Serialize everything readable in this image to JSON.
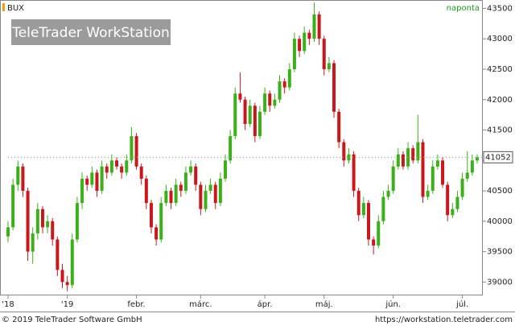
{
  "chart_data": {
    "type": "candlestick",
    "title": "BUX",
    "interval": "naponta",
    "watermark": "TeleTrader WorkStation",
    "footer_left": "© 2019 TeleTrader Software GmbH",
    "footer_right": "https://workstation.teletrader.com",
    "last_value": 41052,
    "up_color": "#3cb01a",
    "down_color": "#c8181e",
    "ylim": [
      38780,
      43625
    ],
    "yticks": [
      {
        "value": 39000,
        "label": "39000"
      },
      39500,
      40000,
      40500,
      41000,
      41500,
      42000,
      42500,
      43000,
      43500
    ],
    "categories": [
      "'18",
      null,
      null,
      null,
      null,
      null,
      null,
      null,
      null,
      null,
      null,
      null,
      "'19",
      null,
      null,
      null,
      null,
      null,
      null,
      null,
      null,
      null,
      null,
      null,
      null,
      null,
      "febr.",
      null,
      null,
      null,
      null,
      null,
      null,
      null,
      null,
      null,
      null,
      null,
      null,
      "márc.",
      null,
      null,
      null,
      null,
      null,
      null,
      null,
      null,
      null,
      null,
      null,
      null,
      "ápr.",
      null,
      null,
      null,
      null,
      null,
      null,
      null,
      null,
      null,
      null,
      null,
      "máj.",
      null,
      null,
      null,
      null,
      null,
      null,
      null,
      null,
      null,
      null,
      null,
      null,
      null,
      "jún.",
      null,
      null,
      null,
      null,
      null,
      null,
      null,
      null,
      null,
      null,
      null,
      null,
      null,
      "júl.",
      null,
      null,
      null
    ],
    "candles": [
      [
        39750,
        40000,
        39650,
        39900
      ],
      [
        39900,
        40700,
        39850,
        40600
      ],
      [
        40600,
        41000,
        40500,
        40900
      ],
      [
        40900,
        40950,
        40400,
        40500
      ],
      [
        40500,
        40550,
        39350,
        39500
      ],
      [
        39500,
        39900,
        39300,
        39800
      ],
      [
        39800,
        40300,
        39700,
        40200
      ],
      [
        40200,
        40250,
        39800,
        39900
      ],
      [
        39900,
        40100,
        39800,
        40000
      ],
      [
        40000,
        40050,
        39600,
        39700
      ],
      [
        39700,
        39750,
        39100,
        39200
      ],
      [
        39200,
        39300,
        38900,
        39000
      ],
      [
        39000,
        39100,
        38850,
        38950
      ],
      [
        38950,
        39800,
        38900,
        39700
      ],
      [
        39700,
        40400,
        39650,
        40300
      ],
      [
        40300,
        40800,
        40200,
        40700
      ],
      [
        40700,
        40750,
        40500,
        40600
      ],
      [
        40600,
        40900,
        40550,
        40800
      ],
      [
        40800,
        40850,
        40400,
        40500
      ],
      [
        40500,
        41000,
        40450,
        40900
      ],
      [
        40900,
        40950,
        40700,
        40800
      ],
      [
        40800,
        41100,
        40750,
        41000
      ],
      [
        41000,
        41050,
        40850,
        40900
      ],
      [
        40900,
        40950,
        40700,
        40800
      ],
      [
        40800,
        41100,
        40750,
        41000
      ],
      [
        41000,
        41550,
        40950,
        41400
      ],
      [
        41400,
        41450,
        40850,
        40900
      ],
      [
        40900,
        40950,
        40600,
        40700
      ],
      [
        40700,
        40750,
        40200,
        40300
      ],
      [
        40300,
        40350,
        39800,
        39900
      ],
      [
        39900,
        39950,
        39600,
        39700
      ],
      [
        39700,
        40400,
        39650,
        40300
      ],
      [
        40300,
        40600,
        40250,
        40500
      ],
      [
        40500,
        40550,
        40200,
        40300
      ],
      [
        40300,
        40700,
        40250,
        40600
      ],
      [
        40600,
        40650,
        40400,
        40500
      ],
      [
        40500,
        40900,
        40450,
        40800
      ],
      [
        40800,
        41000,
        40750,
        40900
      ],
      [
        40900,
        40950,
        40500,
        40600
      ],
      [
        40600,
        40650,
        40100,
        40200
      ],
      [
        40200,
        40600,
        40150,
        40500
      ],
      [
        40500,
        40700,
        40450,
        40600
      ],
      [
        40600,
        40650,
        40200,
        40300
      ],
      [
        40300,
        40800,
        40250,
        40700
      ],
      [
        40700,
        41100,
        40650,
        41000
      ],
      [
        41000,
        41500,
        40950,
        41400
      ],
      [
        41400,
        42200,
        41350,
        42100
      ],
      [
        42100,
        42450,
        41950,
        42000
      ],
      [
        42000,
        42050,
        41500,
        41600
      ],
      [
        41600,
        42000,
        41550,
        41900
      ],
      [
        41900,
        41950,
        41300,
        41400
      ],
      [
        41400,
        41900,
        41350,
        41800
      ],
      [
        41800,
        42200,
        41750,
        42100
      ],
      [
        42100,
        42150,
        41800,
        41900
      ],
      [
        41900,
        42100,
        41850,
        42000
      ],
      [
        42000,
        42400,
        41950,
        42300
      ],
      [
        42300,
        42350,
        42100,
        42200
      ],
      [
        42200,
        42600,
        42150,
        42500
      ],
      [
        42500,
        43100,
        42450,
        43000
      ],
      [
        43000,
        43050,
        42700,
        42800
      ],
      [
        42800,
        43200,
        42750,
        43100
      ],
      [
        43100,
        43150,
        42900,
        43000
      ],
      [
        43000,
        43600,
        42950,
        43400
      ],
      [
        43400,
        43450,
        42900,
        43000
      ],
      [
        43000,
        43050,
        42400,
        42500
      ],
      [
        42500,
        42700,
        42450,
        42600
      ],
      [
        42600,
        42650,
        41700,
        41800
      ],
      [
        41800,
        41850,
        41200,
        41300
      ],
      [
        41300,
        41350,
        40900,
        41000
      ],
      [
        41000,
        41200,
        40950,
        41100
      ],
      [
        41100,
        41150,
        40400,
        40500
      ],
      [
        40500,
        40550,
        40000,
        40100
      ],
      [
        40100,
        40400,
        40050,
        40300
      ],
      [
        40300,
        40350,
        39600,
        39700
      ],
      [
        39700,
        39750,
        39450,
        39600
      ],
      [
        39600,
        40100,
        39550,
        40000
      ],
      [
        40000,
        40500,
        39950,
        40400
      ],
      [
        40400,
        40600,
        40350,
        40500
      ],
      [
        40500,
        41000,
        40450,
        40900
      ],
      [
        40900,
        41200,
        40850,
        41100
      ],
      [
        41100,
        41150,
        40850,
        40900
      ],
      [
        40900,
        41300,
        40850,
        41200
      ],
      [
        41200,
        41250,
        40950,
        41000
      ],
      [
        41000,
        41750,
        40950,
        41300
      ],
      [
        41300,
        41350,
        40300,
        40400
      ],
      [
        40400,
        40600,
        40350,
        40500
      ],
      [
        40500,
        41000,
        40450,
        40900
      ],
      [
        40900,
        41100,
        40850,
        41000
      ],
      [
        41000,
        41050,
        40550,
        40600
      ],
      [
        40600,
        40650,
        40000,
        40100
      ],
      [
        40100,
        40300,
        40050,
        40200
      ],
      [
        40200,
        40500,
        40150,
        40400
      ],
      [
        40400,
        40800,
        40350,
        40700
      ],
      [
        40700,
        41150,
        40650,
        40800
      ],
      [
        40800,
        41100,
        40750,
        41000
      ],
      [
        41000,
        41100,
        40950,
        41052
      ]
    ]
  }
}
